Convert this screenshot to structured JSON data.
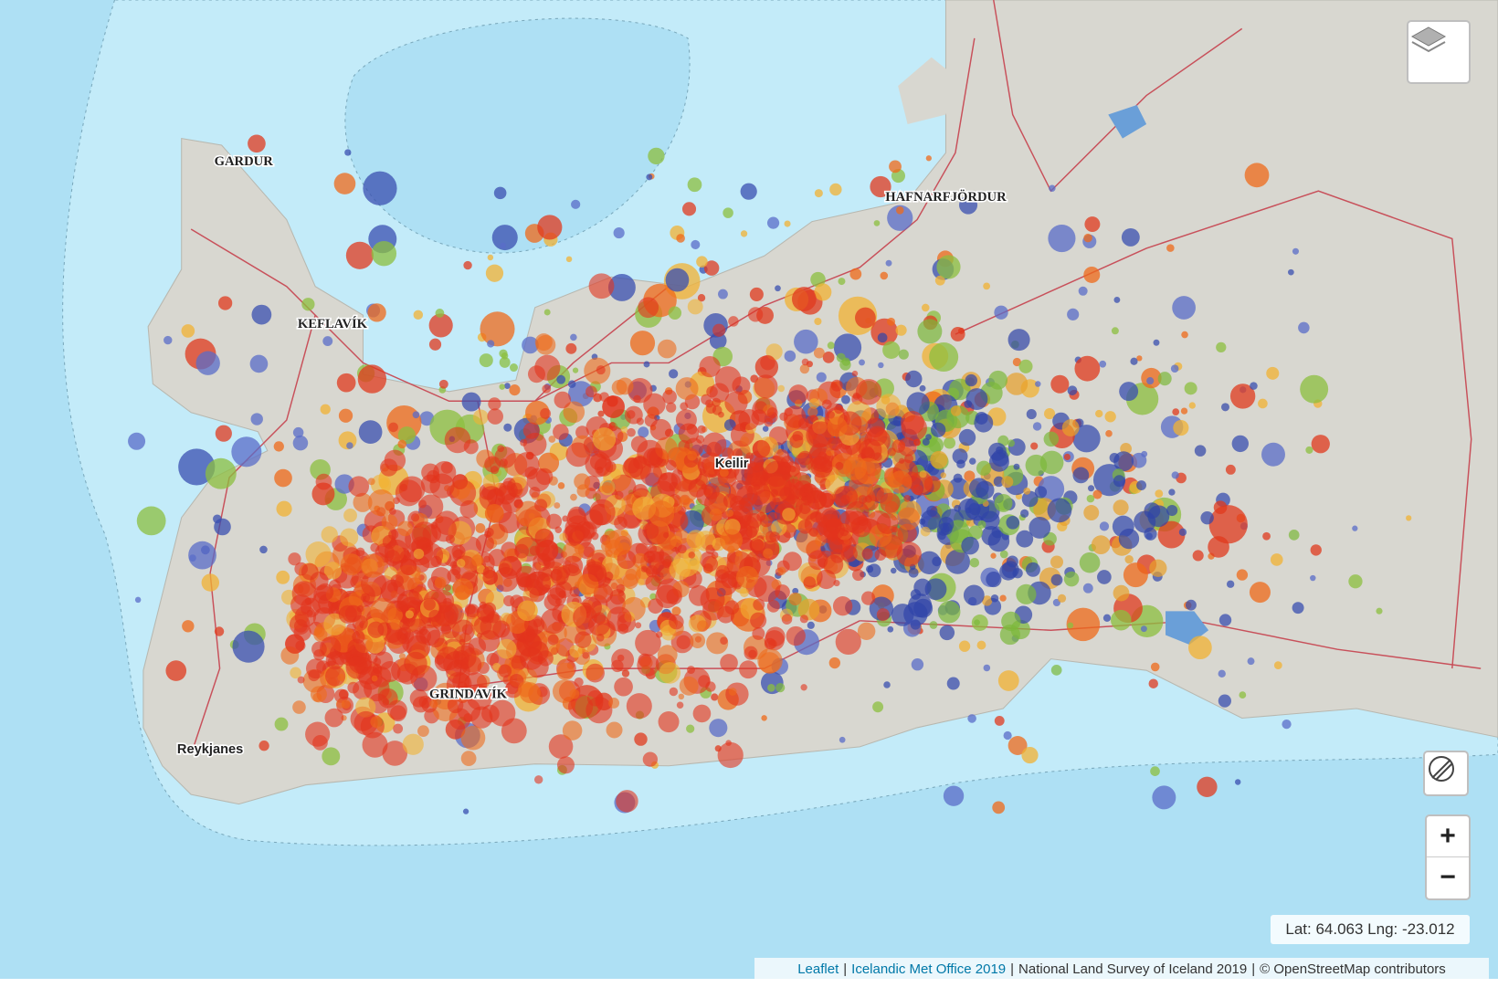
{
  "map": {
    "places": [
      {
        "label": "GARDUR"
      },
      {
        "label": "KEFLAVÍK"
      },
      {
        "label": "HAFNARFJÖRDUR"
      },
      {
        "label": "Keilir"
      },
      {
        "label": "GRINDAVÍK"
      },
      {
        "label": "Reykjanes"
      }
    ]
  },
  "controls": {
    "zoom_in": "+",
    "zoom_out": "−",
    "coordinates": "Lat: 64.063 Lng: -23.012"
  },
  "attribution": {
    "leaflet": "Leaflet",
    "separator": "|",
    "met_office": "Icelandic Met Office 2019",
    "land_survey": "National Land Survey of Iceland 2019",
    "osm": "© OpenStreetMap contributors"
  }
}
